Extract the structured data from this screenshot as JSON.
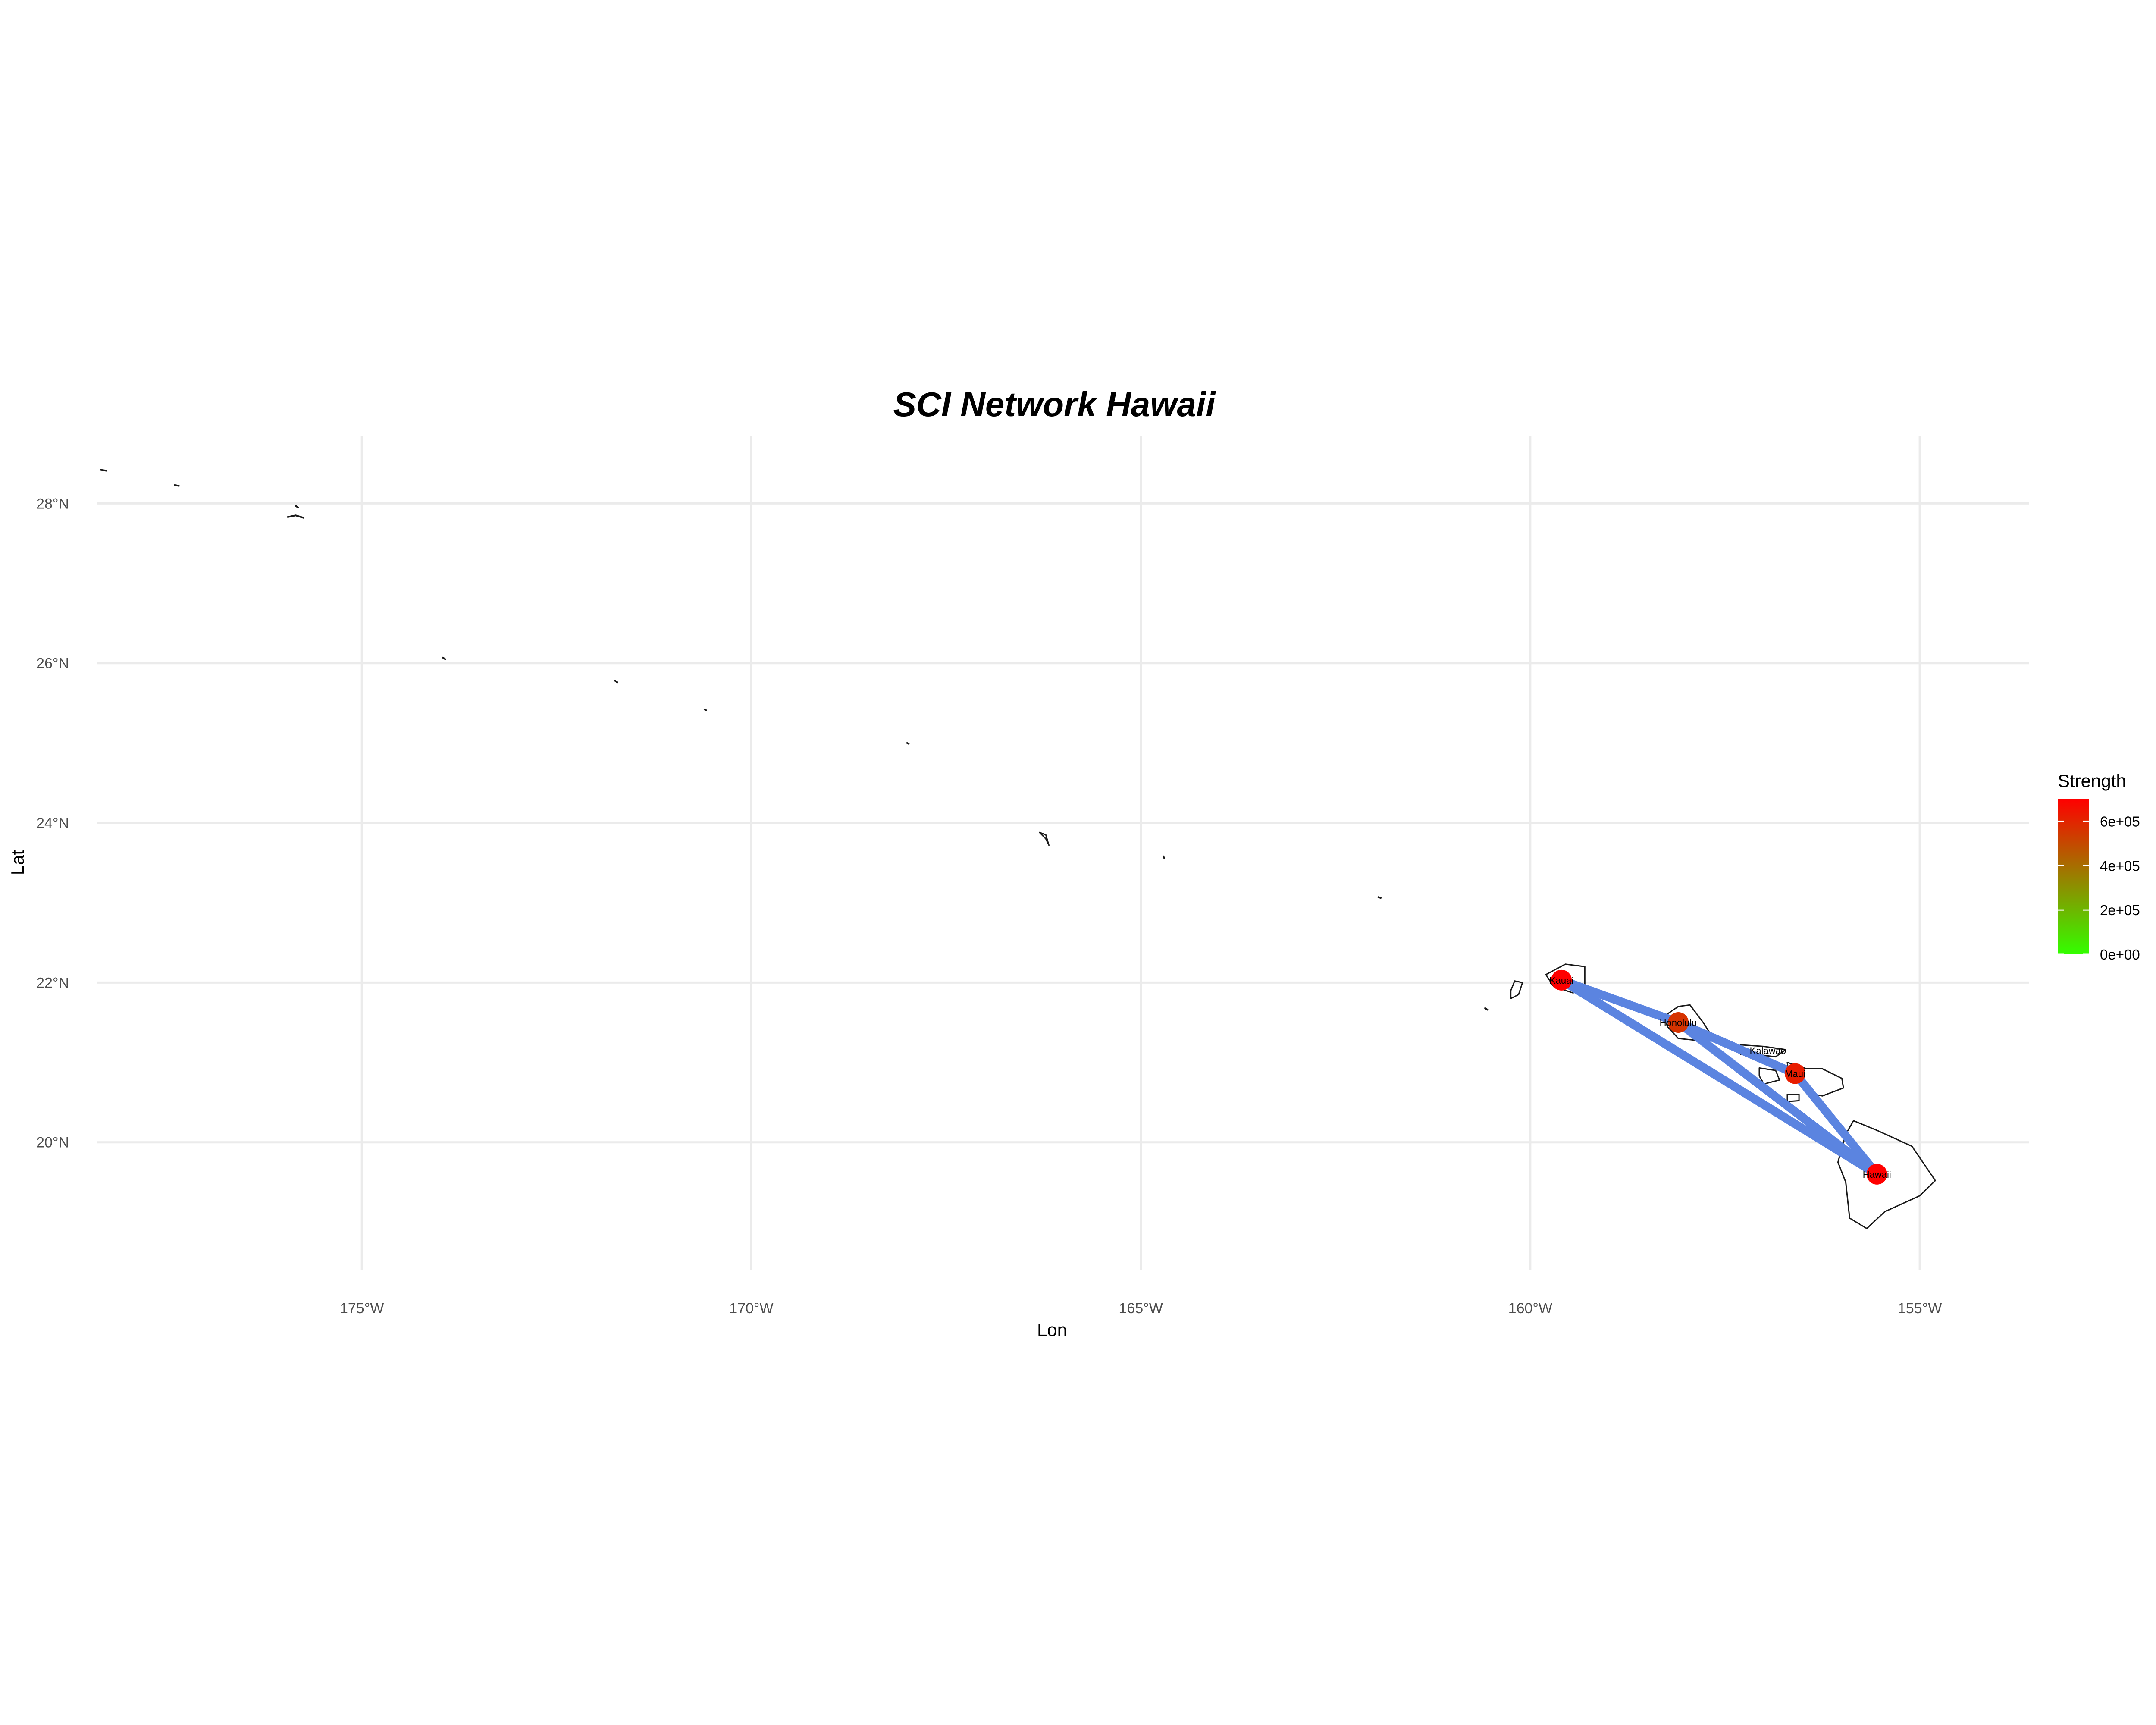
{
  "chart_data": {
    "type": "map",
    "title": "SCI Network Hawaii",
    "xlabel": "Lon",
    "ylabel": "Lat",
    "xlim": [
      -178.4,
      -153.6
    ],
    "ylim": [
      18.4,
      28.85
    ],
    "x_ticks": [
      {
        "value": -175,
        "label": "175°W"
      },
      {
        "value": -170,
        "label": "170°W"
      },
      {
        "value": -165,
        "label": "165°W"
      },
      {
        "value": -160,
        "label": "160°W"
      },
      {
        "value": -155,
        "label": "155°W"
      }
    ],
    "y_ticks": [
      {
        "value": 20,
        "label": "20°N"
      },
      {
        "value": 22,
        "label": "22°N"
      },
      {
        "value": 24,
        "label": "24°N"
      },
      {
        "value": 26,
        "label": "26°N"
      },
      {
        "value": 28,
        "label": "28°N"
      }
    ],
    "grid": true,
    "legend": {
      "title": "Strength",
      "position": "right",
      "min": 0,
      "max": 700000,
      "low_color": "#33ff00",
      "high_color": "#ff0000",
      "ticks": [
        {
          "value": 0,
          "label": "0e+00"
        },
        {
          "value": 200000,
          "label": "2e+05"
        },
        {
          "value": 400000,
          "label": "4e+05"
        },
        {
          "value": 600000,
          "label": "6e+05"
        }
      ]
    },
    "edge_color": "#5b84e0",
    "nodes": [
      {
        "id": "kauai",
        "label": "Kauai",
        "lon": -159.6,
        "lat": 22.03,
        "strength": 700000
      },
      {
        "id": "honolulu",
        "label": "Honolulu",
        "lon": -158.1,
        "lat": 21.5,
        "strength": 560000
      },
      {
        "id": "kalawao",
        "label": "Kalawao",
        "lon": -156.95,
        "lat": 21.15,
        "strength": null
      },
      {
        "id": "maui",
        "label": "Maui",
        "lon": -156.6,
        "lat": 20.86,
        "strength": 620000
      },
      {
        "id": "hawaii",
        "label": "Hawaii",
        "lon": -155.55,
        "lat": 19.6,
        "strength": 720000
      }
    ],
    "edges": [
      {
        "from": "kauai",
        "to": "honolulu"
      },
      {
        "from": "kauai",
        "to": "hawaii"
      },
      {
        "from": "honolulu",
        "to": "maui"
      },
      {
        "from": "honolulu",
        "to": "hawaii"
      },
      {
        "from": "maui",
        "to": "hawaii"
      }
    ],
    "islands": [
      {
        "name": "hawaii",
        "coords": [
          [
            -155.85,
            20.27
          ],
          [
            -155.55,
            20.15
          ],
          [
            -155.1,
            19.95
          ],
          [
            -154.8,
            19.52
          ],
          [
            -155.0,
            19.33
          ],
          [
            -155.45,
            19.13
          ],
          [
            -155.68,
            18.92
          ],
          [
            -155.9,
            19.05
          ],
          [
            -155.95,
            19.5
          ],
          [
            -156.05,
            19.75
          ],
          [
            -155.95,
            20.1
          ]
        ]
      },
      {
        "name": "maui",
        "coords": [
          [
            -156.7,
            21.0
          ],
          [
            -156.45,
            20.92
          ],
          [
            -156.25,
            20.92
          ],
          [
            -156.0,
            20.8
          ],
          [
            -155.98,
            20.68
          ],
          [
            -156.25,
            20.58
          ],
          [
            -156.45,
            20.62
          ],
          [
            -156.55,
            20.82
          ],
          [
            -156.68,
            20.83
          ]
        ]
      },
      {
        "name": "molokai",
        "coords": [
          [
            -157.3,
            21.22
          ],
          [
            -157.0,
            21.2
          ],
          [
            -156.72,
            21.16
          ],
          [
            -156.85,
            21.07
          ],
          [
            -157.1,
            21.1
          ],
          [
            -157.3,
            21.1
          ]
        ]
      },
      {
        "name": "lanai",
        "coords": [
          [
            -157.06,
            20.93
          ],
          [
            -156.85,
            20.9
          ],
          [
            -156.8,
            20.78
          ],
          [
            -157.0,
            20.73
          ],
          [
            -157.06,
            20.83
          ]
        ]
      },
      {
        "name": "kahoolawe",
        "coords": [
          [
            -156.7,
            20.6
          ],
          [
            -156.55,
            20.6
          ],
          [
            -156.55,
            20.52
          ],
          [
            -156.7,
            20.51
          ]
        ]
      },
      {
        "name": "oahu",
        "coords": [
          [
            -158.28,
            21.58
          ],
          [
            -158.1,
            21.7
          ],
          [
            -157.95,
            21.72
          ],
          [
            -157.78,
            21.5
          ],
          [
            -157.65,
            21.3
          ],
          [
            -157.9,
            21.28
          ],
          [
            -158.1,
            21.3
          ],
          [
            -158.24,
            21.45
          ]
        ]
      },
      {
        "name": "kauai",
        "coords": [
          [
            -159.8,
            22.1
          ],
          [
            -159.55,
            22.23
          ],
          [
            -159.3,
            22.2
          ],
          [
            -159.3,
            21.98
          ],
          [
            -159.45,
            21.87
          ],
          [
            -159.7,
            21.95
          ]
        ]
      },
      {
        "name": "niihau",
        "coords": [
          [
            -160.2,
            22.02
          ],
          [
            -160.1,
            22.0
          ],
          [
            -160.15,
            21.85
          ],
          [
            -160.25,
            21.8
          ],
          [
            -160.25,
            21.9
          ]
        ]
      },
      {
        "name": "lehua",
        "coords": [
          [
            -160.58,
            21.68
          ],
          [
            -160.55,
            21.66
          ]
        ]
      },
      {
        "name": "nihoa",
        "coords": [
          [
            -161.95,
            23.07
          ],
          [
            -161.92,
            23.06
          ]
        ]
      },
      {
        "name": "necker",
        "coords": [
          [
            -164.71,
            23.58
          ],
          [
            -164.7,
            23.56
          ]
        ]
      },
      {
        "name": "french-frigate",
        "coords": [
          [
            -166.3,
            23.88
          ],
          [
            -166.22,
            23.85
          ],
          [
            -166.18,
            23.72
          ],
          [
            -166.22,
            23.8
          ]
        ]
      },
      {
        "name": "gardner",
        "coords": [
          [
            -168.0,
            25.0
          ],
          [
            -167.98,
            24.99
          ]
        ]
      },
      {
        "name": "maro",
        "coords": [
          [
            -170.6,
            25.42
          ],
          [
            -170.58,
            25.41
          ]
        ]
      },
      {
        "name": "laysan",
        "coords": [
          [
            -171.75,
            25.78
          ],
          [
            -171.72,
            25.76
          ]
        ]
      },
      {
        "name": "lisianski",
        "coords": [
          [
            -173.96,
            26.07
          ],
          [
            -173.93,
            26.05
          ]
        ]
      },
      {
        "name": "pearl-hermes",
        "coords": [
          [
            -175.95,
            27.83
          ],
          [
            -175.85,
            27.85
          ],
          [
            -175.75,
            27.82
          ]
        ]
      },
      {
        "name": "pearl-hermes-2",
        "coords": [
          [
            -175.85,
            27.97
          ],
          [
            -175.82,
            27.95
          ]
        ]
      },
      {
        "name": "midway",
        "coords": [
          [
            -177.4,
            28.23
          ],
          [
            -177.35,
            28.22
          ]
        ]
      },
      {
        "name": "kure",
        "coords": [
          [
            -178.35,
            28.42
          ],
          [
            -178.28,
            28.41
          ]
        ]
      }
    ]
  }
}
